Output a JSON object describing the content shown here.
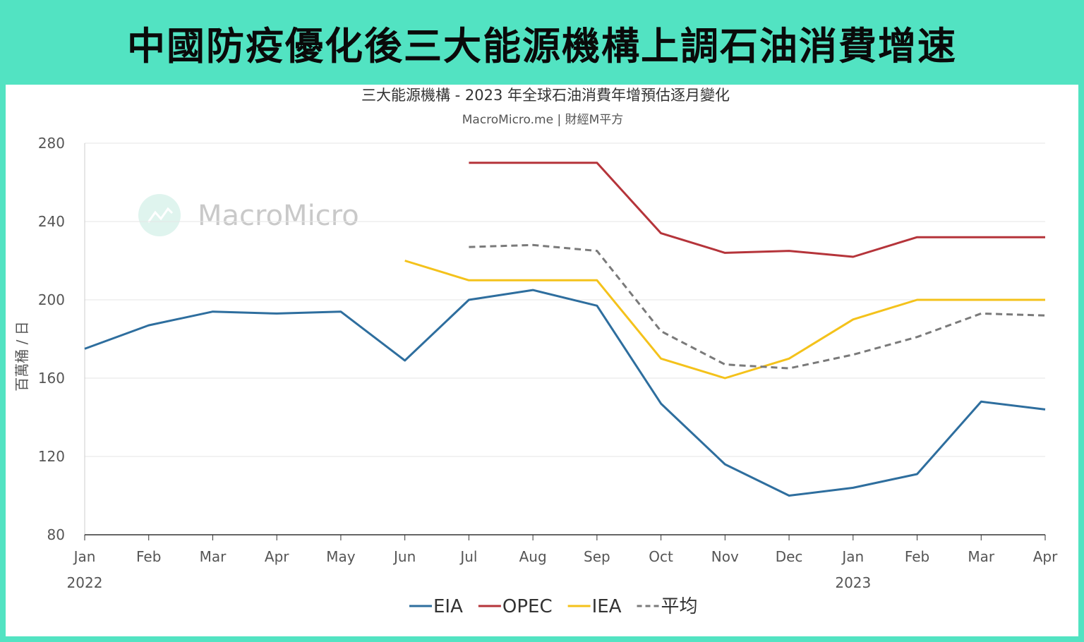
{
  "banner": {
    "title": "中國防疫優化後三大能源機構上調石油消費增速"
  },
  "chart_data": {
    "type": "line",
    "title": "三大能源機構 - 2023 年全球石油消費年增預估逐月變化",
    "subtitle": "MacroMicro.me | 財經M平方",
    "watermark": "MacroMicro",
    "ylabel": "百萬桶 / 日",
    "ylim": [
      80,
      280
    ],
    "yticks": [
      80,
      120,
      160,
      200,
      240,
      280
    ],
    "categories": [
      "Jan",
      "Feb",
      "Mar",
      "Apr",
      "May",
      "Jun",
      "Jul",
      "Aug",
      "Sep",
      "Oct",
      "Nov",
      "Dec",
      "Jan",
      "Feb",
      "Mar",
      "Apr"
    ],
    "year_labels": [
      {
        "index": 0,
        "label": "2022"
      },
      {
        "index": 12,
        "label": "2023"
      }
    ],
    "grid": true,
    "legend_position": "bottom",
    "series": [
      {
        "name": "EIA",
        "color": "#2e6e9e",
        "dash": false,
        "values": [
          175,
          187,
          194,
          193,
          194,
          169,
          200,
          205,
          197,
          147,
          116,
          100,
          104,
          111,
          148,
          144
        ]
      },
      {
        "name": "OPEC",
        "color": "#b5343a",
        "dash": false,
        "values": [
          null,
          null,
          null,
          null,
          null,
          null,
          270,
          270,
          270,
          234,
          224,
          225,
          222,
          232,
          232,
          232
        ]
      },
      {
        "name": "IEA",
        "color": "#f4c21b",
        "dash": false,
        "values": [
          null,
          null,
          null,
          null,
          null,
          220,
          210,
          210,
          210,
          170,
          160,
          170,
          190,
          200,
          200,
          200
        ]
      },
      {
        "name": "平均",
        "color": "#7a7a7a",
        "dash": true,
        "values": [
          null,
          null,
          null,
          null,
          null,
          null,
          227,
          228,
          225,
          184,
          167,
          165,
          172,
          181,
          193,
          192
        ]
      }
    ]
  }
}
